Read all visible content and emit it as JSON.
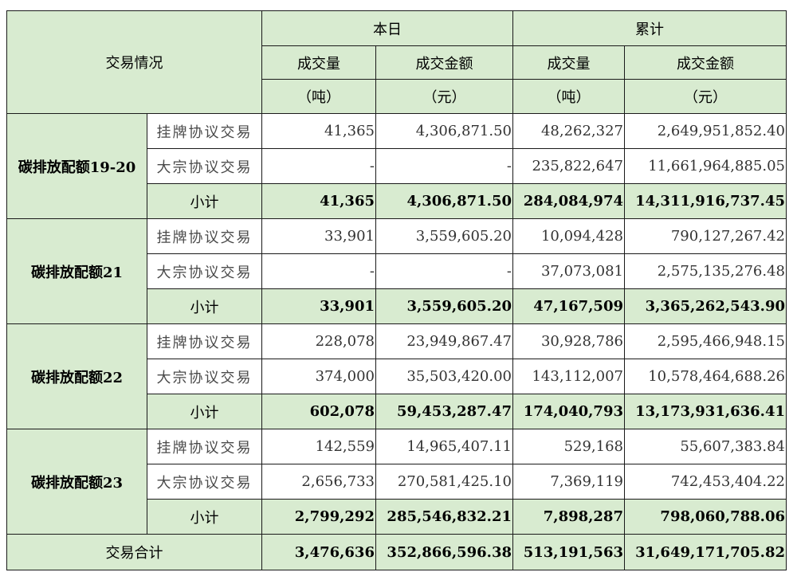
{
  "header": {
    "title": "交易情况",
    "today": "本日",
    "cumulative": "累计",
    "volume": "成交量",
    "volume_unit": "（吨）",
    "amount": "成交金额",
    "amount_unit": "（元）"
  },
  "groups": [
    {
      "name": "碳排放配额19-20",
      "rows": [
        {
          "label": "挂牌协议交易",
          "d_vol": "41,365",
          "d_amt": "4,306,871.50",
          "c_vol": "48,262,327",
          "c_amt": "2,649,951,852.40"
        },
        {
          "label": "大宗协议交易",
          "d_vol": "-",
          "d_amt": "-",
          "c_vol": "235,822,647",
          "c_amt": "11,661,964,885.05"
        },
        {
          "label": "小计",
          "d_vol": "41,365",
          "d_amt": "4,306,871.50",
          "c_vol": "284,084,974",
          "c_amt": "14,311,916,737.45"
        }
      ]
    },
    {
      "name": "碳排放配额21",
      "rows": [
        {
          "label": "挂牌协议交易",
          "d_vol": "33,901",
          "d_amt": "3,559,605.20",
          "c_vol": "10,094,428",
          "c_amt": "790,127,267.42"
        },
        {
          "label": "大宗协议交易",
          "d_vol": "-",
          "d_amt": "-",
          "c_vol": "37,073,081",
          "c_amt": "2,575,135,276.48"
        },
        {
          "label": "小计",
          "d_vol": "33,901",
          "d_amt": "3,559,605.20",
          "c_vol": "47,167,509",
          "c_amt": "3,365,262,543.90"
        }
      ]
    },
    {
      "name": "碳排放配额22",
      "rows": [
        {
          "label": "挂牌协议交易",
          "d_vol": "228,078",
          "d_amt": "23,949,867.47",
          "c_vol": "30,928,786",
          "c_amt": "2,595,466,948.15"
        },
        {
          "label": "大宗协议交易",
          "d_vol": "374,000",
          "d_amt": "35,503,420.00",
          "c_vol": "143,112,007",
          "c_amt": "10,578,464,688.26"
        },
        {
          "label": "小计",
          "d_vol": "602,078",
          "d_amt": "59,453,287.47",
          "c_vol": "174,040,793",
          "c_amt": "13,173,931,636.41"
        }
      ]
    },
    {
      "name": "碳排放配额23",
      "rows": [
        {
          "label": "挂牌协议交易",
          "d_vol": "142,559",
          "d_amt": "14,965,407.11",
          "c_vol": "529,168",
          "c_amt": "55,607,383.84"
        },
        {
          "label": "大宗协议交易",
          "d_vol": "2,656,733",
          "d_amt": "270,581,425.10",
          "c_vol": "7,369,119",
          "c_amt": "742,453,404.22"
        },
        {
          "label": "小计",
          "d_vol": "2,799,292",
          "d_amt": "285,546,832.21",
          "c_vol": "7,898,287",
          "c_amt": "798,060,788.06"
        }
      ]
    }
  ],
  "total": {
    "label": "交易合计",
    "d_vol": "3,476,636",
    "d_amt": "352,866,596.38",
    "c_vol": "513,191,563",
    "c_amt": "31,649,171,705.82"
  }
}
